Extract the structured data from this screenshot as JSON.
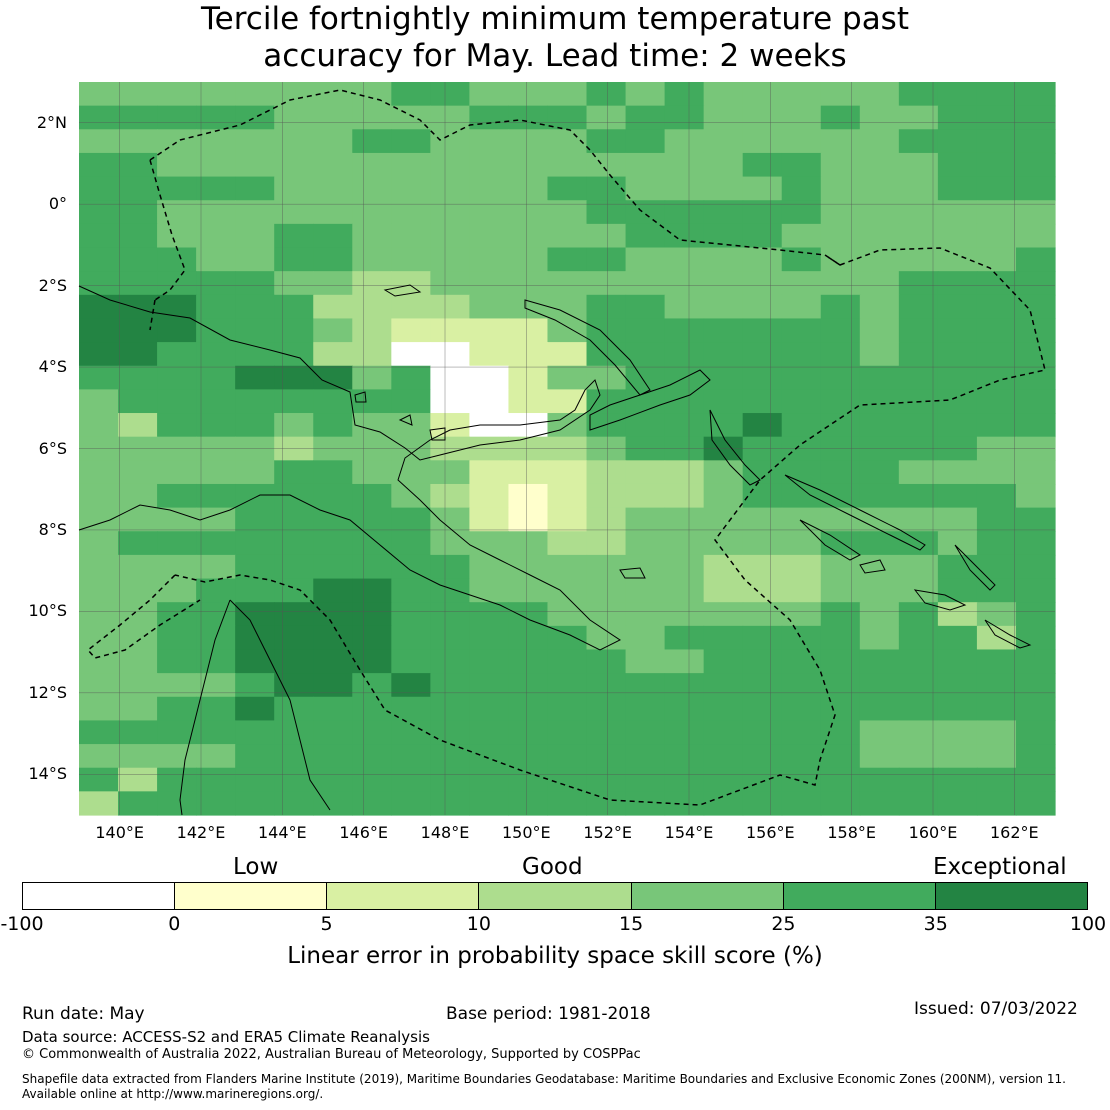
{
  "title_line1": "Tercile fortnightly minimum temperature past",
  "title_line2": "accuracy for May. Lead time: 2 weeks",
  "map": {
    "lon_range": [
      139,
      163
    ],
    "lat_range": [
      -15,
      3
    ],
    "lon_ticks": [
      "140°E",
      "142°E",
      "144°E",
      "146°E",
      "148°E",
      "150°E",
      "152°E",
      "154°E",
      "156°E",
      "158°E",
      "160°E",
      "162°E"
    ],
    "lat_ticks": [
      "2°N",
      "0°",
      "2°S",
      "4°S",
      "6°S",
      "8°S",
      "10°S",
      "12°S",
      "14°S"
    ],
    "cell_size_deg": 0.833,
    "region": "Papua New Guinea"
  },
  "legend": {
    "categories": [
      "Low",
      "Good",
      "Exceptional"
    ],
    "boundaries": [
      "-100",
      "0",
      "5",
      "10",
      "15",
      "25",
      "35",
      "100"
    ],
    "colors": [
      "#ffffff",
      "#ffffcc",
      "#d9f0a3",
      "#addd8e",
      "#78c679",
      "#41ab5d",
      "#238443"
    ],
    "axis_label": "Linear error in probability space skill score (%)"
  },
  "footer": {
    "run_date": "Run date: May",
    "base_period": "Base period: 1981-2018",
    "issued": "Issued: 07/03/2022",
    "data_source": "Data source: ACCESS-S2 and ERA5 Climate Reanalysis",
    "copyright": "© Commonwealth of Australia 2022, Australian Bureau of Meteorology, Supported by COSPPac",
    "shapefile_line1": "Shapefile data extracted from Flanders Marine Institute (2019), Maritime Boundaries Geodatabase: Maritime Boundaries and Exclusive Economic Zones (200NM), version 11.",
    "shapefile_line2": "Available online at http://www.marineregions.org/."
  }
}
